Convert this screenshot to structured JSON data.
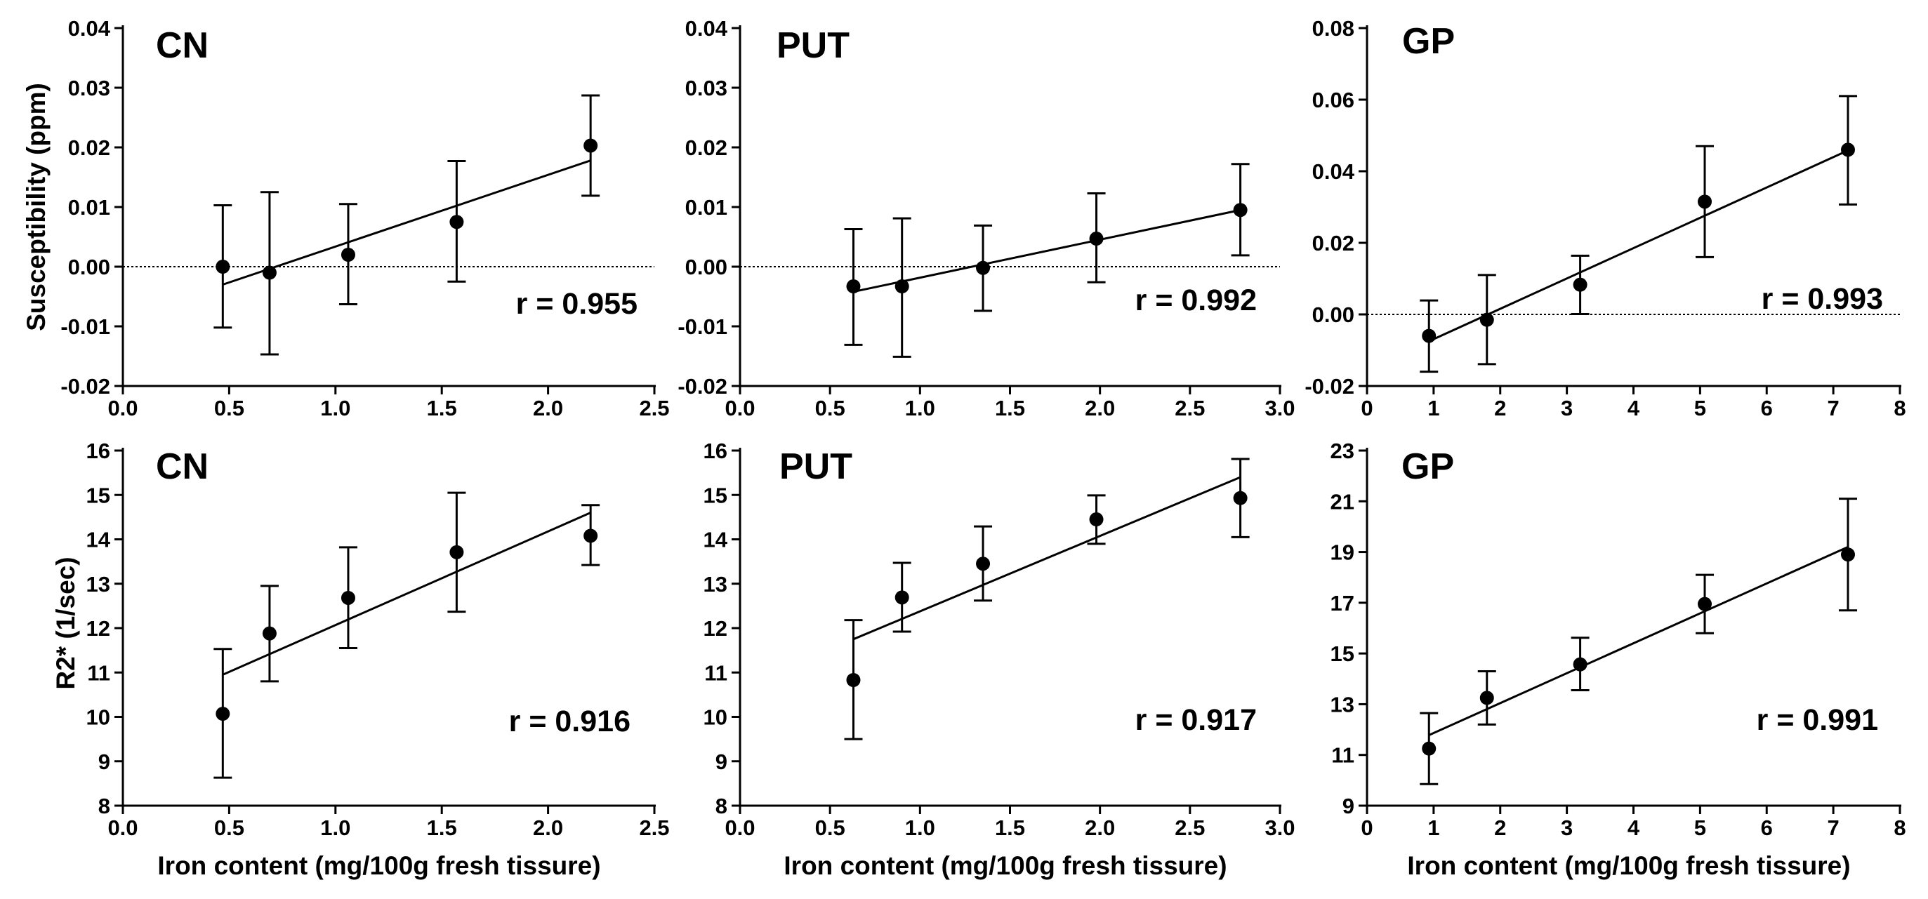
{
  "figure": {
    "y_labels": [
      "Susceptibility (ppm)",
      "R2* (1/sec)"
    ],
    "x_label": "Iron content (mg/100g fresh tissure)"
  },
  "chart_data": [
    {
      "type": "scatter",
      "title": "CN",
      "annotation": "r = 0.955",
      "xlim": [
        0,
        2.5
      ],
      "ylim": [
        -0.02,
        0.04
      ],
      "xticks": [
        0,
        0.5,
        1.0,
        1.5,
        2.0,
        2.5
      ],
      "xtick_labels": [
        "0.0",
        "0.5",
        "1.0",
        "1.5",
        "2.0",
        "2.5"
      ],
      "yticks": [
        -0.02,
        -0.01,
        0,
        0.01,
        0.02,
        0.03,
        0.04
      ],
      "ytick_labels": [
        "-0.02",
        "-0.01",
        "0.00",
        "0.01",
        "0.02",
        "0.03",
        "0.04"
      ],
      "x": [
        0.47,
        0.69,
        1.06,
        1.57,
        2.2
      ],
      "y": [
        0.0,
        -0.001,
        0.002,
        0.0075,
        0.0203
      ],
      "err_low": [
        -0.0102,
        -0.0147,
        -0.0063,
        -0.0025,
        0.0119
      ],
      "err_high": [
        0.0103,
        0.0125,
        0.0105,
        0.0177,
        0.0287
      ],
      "fit": [
        [
          0.47,
          -0.003
        ],
        [
          2.2,
          0.0178
        ]
      ],
      "zero_line": 0
    },
    {
      "type": "scatter",
      "title": "PUT",
      "annotation": "r = 0.992",
      "xlim": [
        0,
        3.0
      ],
      "ylim": [
        -0.02,
        0.04
      ],
      "xticks": [
        0,
        0.5,
        1.0,
        1.5,
        2.0,
        2.5,
        3.0
      ],
      "xtick_labels": [
        "0.0",
        "0.5",
        "1.0",
        "1.5",
        "2.0",
        "2.5",
        "3.0"
      ],
      "yticks": [
        -0.02,
        -0.01,
        0,
        0.01,
        0.02,
        0.03,
        0.04
      ],
      "ytick_labels": [
        "-0.02",
        "-0.01",
        "0.00",
        "0.01",
        "0.02",
        "0.03",
        "0.04"
      ],
      "x": [
        0.63,
        0.9,
        1.35,
        1.98,
        2.78
      ],
      "y": [
        -0.0033,
        -0.0033,
        -0.0002,
        0.0047,
        0.0095
      ],
      "err_low": [
        -0.0131,
        -0.0151,
        -0.0074,
        -0.0026,
        0.0019
      ],
      "err_high": [
        0.0063,
        0.0081,
        0.0069,
        0.0123,
        0.0172
      ],
      "fit": [
        [
          0.63,
          -0.0042
        ],
        [
          2.78,
          0.0095
        ]
      ],
      "zero_line": 0
    },
    {
      "type": "scatter",
      "title": "GP",
      "annotation": "r = 0.993",
      "xlim": [
        0,
        8
      ],
      "ylim": [
        -0.02,
        0.08
      ],
      "xticks": [
        0,
        1,
        2,
        3,
        4,
        5,
        6,
        7,
        8
      ],
      "xtick_labels": [
        "0",
        "1",
        "2",
        "3",
        "4",
        "5",
        "6",
        "7",
        "8"
      ],
      "yticks": [
        -0.02,
        0,
        0.02,
        0.04,
        0.06,
        0.08
      ],
      "ytick_labels": [
        "-0.02",
        "0.00",
        "0.02",
        "0.04",
        "0.06",
        "0.08"
      ],
      "x": [
        0.93,
        1.8,
        3.2,
        5.07,
        7.22
      ],
      "y": [
        -0.006,
        -0.0015,
        0.0083,
        0.0315,
        0.046
      ],
      "err_low": [
        -0.016,
        -0.0139,
        0.0001,
        0.016,
        0.0307
      ],
      "err_high": [
        0.0039,
        0.011,
        0.0164,
        0.047,
        0.061
      ],
      "fit": [
        [
          0.93,
          -0.0075
        ],
        [
          7.22,
          0.0458
        ]
      ],
      "zero_line": 0
    },
    {
      "type": "scatter",
      "title": "CN",
      "annotation": "r = 0.916",
      "xlim": [
        0,
        2.5
      ],
      "ylim": [
        8,
        16
      ],
      "xticks": [
        0,
        0.5,
        1.0,
        1.5,
        2.0,
        2.5
      ],
      "xtick_labels": [
        "0.0",
        "0.5",
        "1.0",
        "1.5",
        "2.0",
        "2.5"
      ],
      "yticks": [
        8,
        9,
        10,
        11,
        12,
        13,
        14,
        15,
        16
      ],
      "ytick_labels": [
        "8",
        "9",
        "10",
        "11",
        "12",
        "13",
        "14",
        "15",
        "16"
      ],
      "x": [
        0.47,
        0.69,
        1.06,
        1.57,
        2.2
      ],
      "y": [
        10.07,
        11.88,
        12.68,
        13.71,
        14.08
      ],
      "err_low": [
        8.63,
        10.8,
        11.55,
        12.37,
        13.42
      ],
      "err_high": [
        11.53,
        12.95,
        13.82,
        15.05,
        14.77
      ],
      "fit": [
        [
          0.47,
          10.95
        ],
        [
          2.2,
          14.6
        ]
      ]
    },
    {
      "type": "scatter",
      "title": "PUT",
      "annotation": "r = 0.917",
      "xlim": [
        0,
        3.0
      ],
      "ylim": [
        8,
        16
      ],
      "xticks": [
        0,
        0.5,
        1.0,
        1.5,
        2.0,
        2.5,
        3.0
      ],
      "xtick_labels": [
        "0.0",
        "0.5",
        "1.0",
        "1.5",
        "2.0",
        "2.5",
        "3.0"
      ],
      "yticks": [
        8,
        9,
        10,
        11,
        12,
        13,
        14,
        15,
        16
      ],
      "ytick_labels": [
        "8",
        "9",
        "10",
        "11",
        "12",
        "13",
        "14",
        "15",
        "16"
      ],
      "x": [
        0.63,
        0.9,
        1.35,
        1.98,
        2.78
      ],
      "y": [
        10.83,
        12.69,
        13.45,
        14.45,
        14.93
      ],
      "err_low": [
        9.5,
        11.92,
        12.62,
        13.9,
        14.05
      ],
      "err_high": [
        12.18,
        13.47,
        14.29,
        14.99,
        15.81
      ],
      "fit": [
        [
          0.63,
          11.75
        ],
        [
          2.78,
          15.4
        ]
      ]
    },
    {
      "type": "scatter",
      "title": "GP",
      "annotation": "r = 0.991",
      "xlim": [
        0,
        8
      ],
      "ylim": [
        9,
        23
      ],
      "xticks": [
        0,
        1,
        2,
        3,
        4,
        5,
        6,
        7,
        8
      ],
      "xtick_labels": [
        "0",
        "1",
        "2",
        "3",
        "4",
        "5",
        "6",
        "7",
        "8"
      ],
      "yticks": [
        9,
        11,
        13,
        15,
        17,
        19,
        21,
        23
      ],
      "ytick_labels": [
        "9",
        "11",
        "13",
        "15",
        "17",
        "19",
        "21",
        "23"
      ],
      "x": [
        0.93,
        1.8,
        3.2,
        5.07,
        7.22
      ],
      "y": [
        11.25,
        13.25,
        14.57,
        16.95,
        18.9
      ],
      "err_low": [
        9.85,
        12.2,
        13.55,
        15.8,
        16.7
      ],
      "err_high": [
        12.65,
        14.3,
        15.62,
        18.1,
        21.1
      ],
      "fit": [
        [
          0.93,
          11.78
        ],
        [
          7.22,
          19.2
        ]
      ]
    }
  ]
}
